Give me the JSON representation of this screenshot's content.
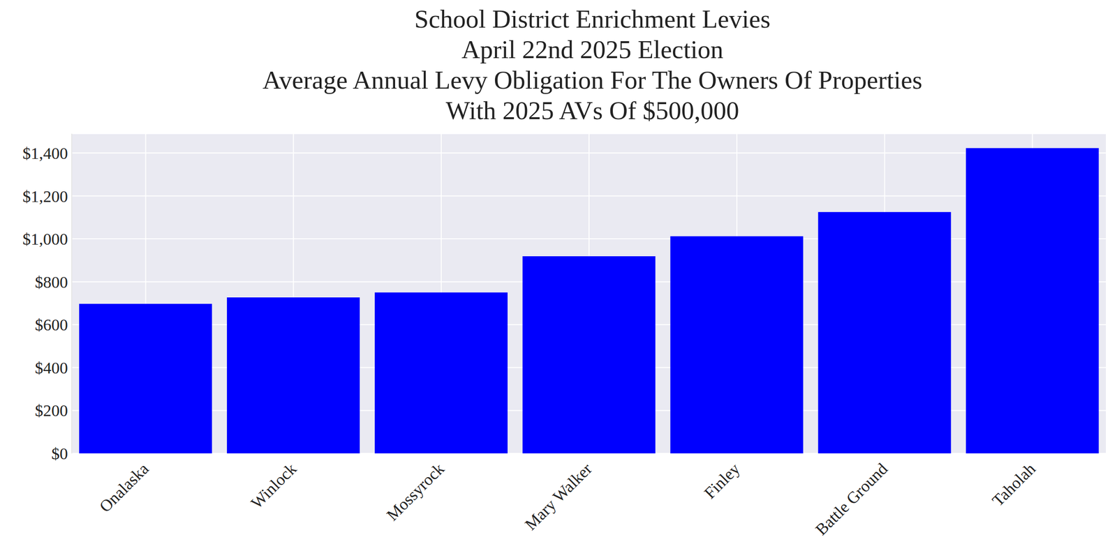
{
  "chart_data": {
    "type": "bar",
    "title": "School District Enrichment Levies\nApril 22nd 2025 Election\nAverage Annual Levy Obligation For The Owners Of Properties\nWith 2025 AVs Of $500,000",
    "categories": [
      "Onalaska",
      "Winlock",
      "Mossyrock",
      "Mary Walker",
      "Finley",
      "Battle Ground",
      "Taholah"
    ],
    "values": [
      697,
      727,
      750,
      919,
      1012,
      1125,
      1423
    ],
    "color": "#0000ff",
    "ylim": [
      0,
      1490
    ],
    "yticks": [
      {
        "value": 0,
        "label": "$0"
      },
      {
        "value": 200,
        "label": "$200"
      },
      {
        "value": 400,
        "label": "$400"
      },
      {
        "value": 600,
        "label": "$600"
      },
      {
        "value": 800,
        "label": "$800"
      },
      {
        "value": 1000,
        "label": "$1,000"
      },
      {
        "value": 1200,
        "label": "$1,200"
      },
      {
        "value": 1400,
        "label": "$1,400"
      }
    ],
    "grid": true
  }
}
